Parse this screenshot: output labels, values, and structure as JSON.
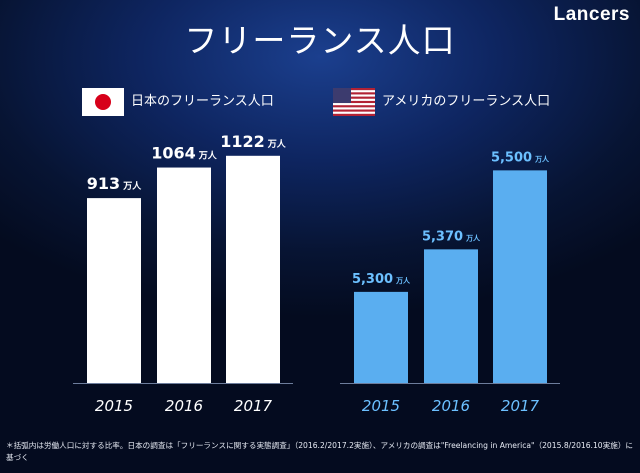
{
  "brand": "Lancers",
  "title": "フリーランス人口",
  "chart_data": [
    {
      "type": "bar",
      "title": "日本のフリーランス人口",
      "flag": "japan-flag",
      "categories": [
        "2015",
        "2016",
        "2017"
      ],
      "values": [
        913,
        1064,
        1122
      ],
      "value_labels": [
        "913",
        "1064",
        "1122"
      ],
      "unit": "万人",
      "color": "#ffffff",
      "label_color": "#ffffff",
      "xlabel": "",
      "ylabel": "",
      "ylim": [
        0,
        1200
      ]
    },
    {
      "type": "bar",
      "title": "アメリカのフリーランス人口",
      "flag": "usa-flag",
      "categories": [
        "2015",
        "2016",
        "2017"
      ],
      "values": [
        5300,
        5370,
        5500
      ],
      "value_labels": [
        "5,300",
        "5,370",
        "5,500"
      ],
      "unit": "万人",
      "color": "#5aaef0",
      "label_color": "#6cc0ff",
      "xlabel": "",
      "ylabel": "",
      "ylim": [
        5150,
        5550
      ]
    }
  ],
  "footnote": "＊括弧内は労働人口に対する比率。日本の調査は「フリーランスに関する実態調査」（2016.2/2017.2実施）、アメリカの調査は\"Freelancing in America\"（2015.8/2016.10実施）に基づく"
}
